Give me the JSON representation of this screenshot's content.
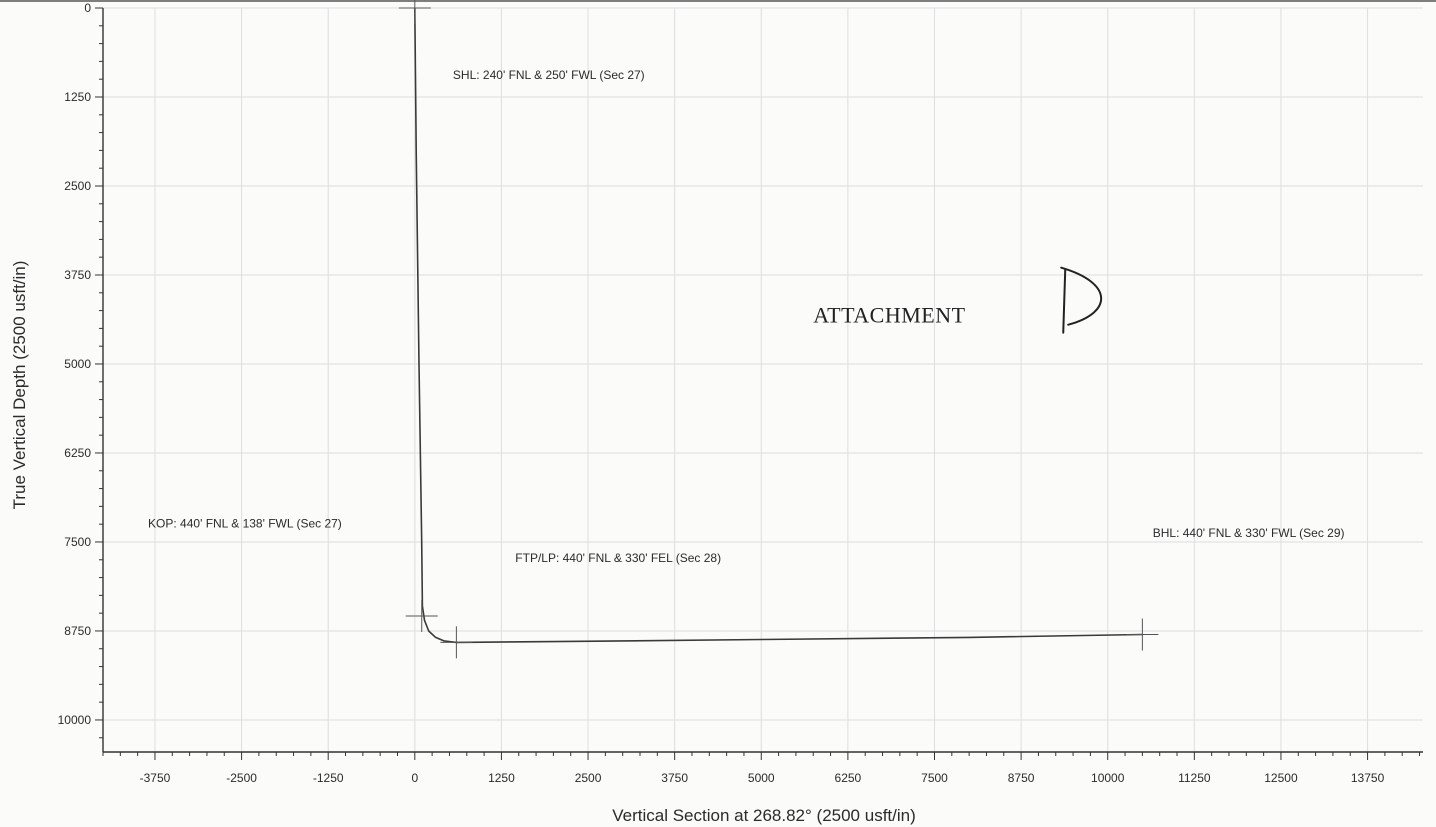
{
  "chart_data": {
    "type": "line",
    "title": "",
    "xlabel": "Vertical Section at 268.82° (2500 usft/in)",
    "ylabel": "True Vertical Depth (2500 usft/in)",
    "xlim": [
      -4500,
      14550
    ],
    "ylim": [
      0,
      10450
    ],
    "y_inverted": true,
    "grid": true,
    "x_ticks": [
      -3750,
      -2500,
      -1250,
      0,
      1250,
      2500,
      3750,
      5000,
      6250,
      7500,
      8750,
      10000,
      11250,
      12500,
      13750
    ],
    "y_ticks": [
      0,
      1250,
      2500,
      3750,
      5000,
      6250,
      7500,
      8750,
      10000
    ],
    "series": [
      {
        "name": "",
        "color": "#3a3a3a",
        "x": [
          0,
          20,
          60,
          100,
          110,
          140,
          200,
          300,
          420,
          600,
          2000,
          5000,
          8000,
          10500
        ],
        "y": [
          0,
          2000,
          5000,
          7500,
          8400,
          8600,
          8750,
          8840,
          8890,
          8910,
          8900,
          8870,
          8840,
          8800
        ]
      }
    ],
    "markers": [
      {
        "x": 0,
        "y": 0
      },
      {
        "x": 100,
        "y": 8540
      },
      {
        "x": 600,
        "y": 8910
      },
      {
        "x": 10500,
        "y": 8800
      }
    ],
    "annotations": [
      {
        "id": "shl",
        "text": "SHL: 240' FNL & 250' FWL (Sec 27)",
        "x": 550,
        "y": 1000
      },
      {
        "id": "kop",
        "text": "KOP: 440' FNL & 138' FWL (Sec 27)",
        "x": -3850,
        "y": 7300
      },
      {
        "id": "ftp",
        "text": "FTP/LP: 440' FNL & 330' FEL (Sec 28)",
        "x": 1450,
        "y": 7780
      },
      {
        "id": "bhl",
        "text": "BHL: 440' FNL & 330' FWL (Sec 29)",
        "x": 10650,
        "y": 7430
      }
    ],
    "stamp": {
      "text": "ATTACHMENT",
      "handwritten_letter": "D",
      "x": 5750,
      "y": 4420
    }
  }
}
